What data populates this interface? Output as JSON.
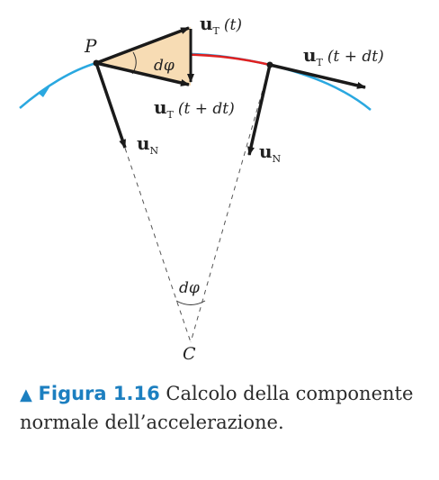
{
  "diagram": {
    "labels": {
      "point_p": "P",
      "center_c": "C",
      "angle_top": "dφ",
      "angle_bottom": "dφ",
      "ut_t_vec": "u",
      "ut_t_sub": "T",
      "ut_t_arg": "(t)",
      "ut_tdt_vec": "u",
      "ut_tdt_sub": "T",
      "ut_tdt_arg": "(t + dt)",
      "ut_tdt_mid_vec": "u",
      "ut_tdt_mid_sub": "T",
      "ut_tdt_mid_arg": "(t + dt)",
      "un1_vec": "u",
      "un1_sub": "N",
      "un2_vec": "u",
      "un2_sub": "N"
    },
    "colors": {
      "trajectory": "#2aa8e0",
      "arc_segment": "#e02020",
      "vectors": "#1a1a1a",
      "triangle_fill": "#f7dcb4",
      "dashed": "#555555"
    }
  },
  "caption": {
    "marker": "▲",
    "figure_label": "Figura 1.16",
    "text": "Calcolo della componente normale dell’accelerazione."
  }
}
